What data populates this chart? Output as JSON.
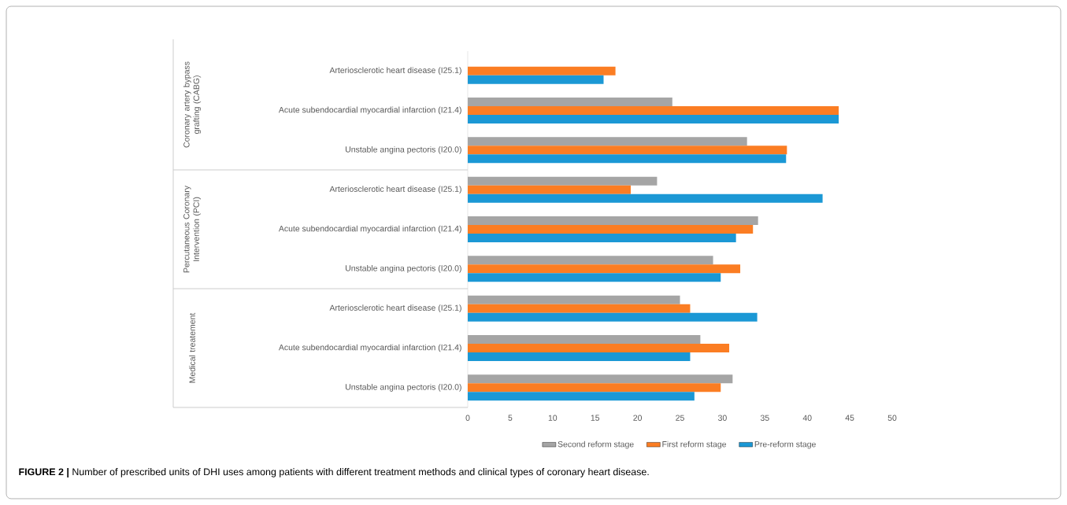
{
  "chart_data": {
    "type": "bar",
    "orientation": "horizontal",
    "title": "**FIGURE 2 |** Number of prescribed units of DHI uses among patients with different treatment methods and clinical types of coronary heart disease.",
    "categories": [
      "Arteriosclerotic heart disease (I25.1)",
      "Acute subendocardial myocardial infarction (I21.4)",
      "Unstable angina pectoris (I20.0)",
      "Arteriosclerotic heart disease (I25.1)",
      "Acute subendocardial myocardial infarction (I21.4)",
      "Unstable angina pectoris (I20.0)",
      "Arteriosclerotic heart disease (I25.1)",
      "Acute subendocardial myocardial infarction (I21.4)",
      "Unstable angina pectoris (I20.0)"
    ],
    "series": [
      {
        "name": "Second reform stage",
        "color": "#a5a5a5",
        "values": [
          null,
          24.1,
          32.9,
          22.3,
          34.2,
          28.9,
          25.0,
          27.4,
          31.2
        ]
      },
      {
        "name": "First reform stage",
        "color": "#fb7d23",
        "values": [
          17.4,
          43.7,
          37.6,
          19.2,
          33.6,
          32.1,
          26.2,
          30.8,
          29.8
        ]
      },
      {
        "name": "Pre-reform stage",
        "color": "#1b98d5",
        "values": [
          16.0,
          43.7,
          37.5,
          41.8,
          31.6,
          29.8,
          34.1,
          26.2,
          26.7
        ]
      }
    ],
    "xlim": [
      0,
      50
    ],
    "xticks": [
      0,
      5,
      10,
      15,
      20,
      25,
      30,
      35,
      40,
      45,
      50
    ],
    "legend": "bottom",
    "annotations": [
      "Coronary artery bypass grafting (CABG)",
      "Percutaneous Coronary Intervention (PCI)",
      "Medical treatement"
    ]
  }
}
